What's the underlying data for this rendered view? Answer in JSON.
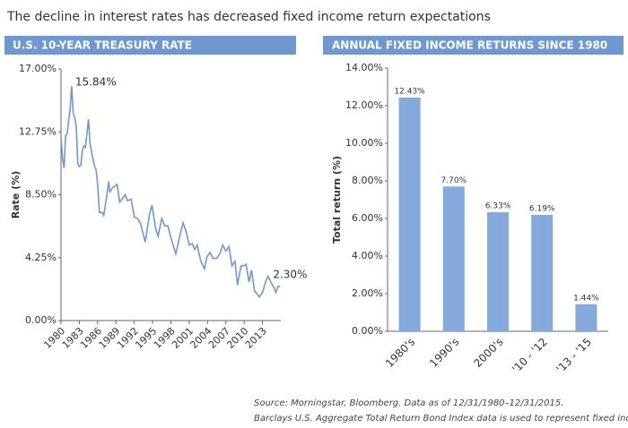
{
  "title": "The decline in interest rates has decreased fixed income return expectations",
  "source": [
    "Source: Morningstar, Bloomberg. Data as of 12/31/1980–12/31/2015.",
    "Barclays U.S. Aggregate Total Return Bond Index data is used to represent fixed income returns"
  ],
  "chart_data": [
    {
      "type": "line",
      "title": "U.S. 10-YEAR TREASURY RATE",
      "y_label": "Rate (%)",
      "color": "#6f98d0",
      "annotations": [
        "15.84%",
        "2.30%"
      ],
      "x": [
        1980.0,
        1980.25,
        1980.5,
        1980.75,
        1981.0,
        1981.25,
        1981.5,
        1981.75,
        1982.0,
        1982.25,
        1982.5,
        1982.75,
        1983.0,
        1983.25,
        1983.5,
        1983.75,
        1984.0,
        1984.5,
        1984.75,
        1985.0,
        1985.5,
        1985.75,
        1986.0,
        1986.3,
        1986.75,
        1987.0,
        1987.5,
        1987.8,
        1988.0,
        1988.5,
        1988.9,
        1989.2,
        1989.6,
        1990.0,
        1990.5,
        1990.9,
        1991.5,
        1992.0,
        1992.5,
        1993.0,
        1993.8,
        1994.5,
        1994.9,
        1995.5,
        1995.9,
        1996.5,
        1997.0,
        1997.5,
        1998.0,
        1998.8,
        1999.5,
        2000.0,
        2000.5,
        2001.0,
        2001.5,
        2001.9,
        2002.3,
        2002.9,
        2003.5,
        2003.9,
        2004.4,
        2004.9,
        2005.5,
        2006.0,
        2006.5,
        2007.0,
        2007.5,
        2008.0,
        2008.5,
        2008.9,
        2009.5,
        2010.0,
        2010.3,
        2010.8,
        2011.2,
        2011.7,
        2012.5,
        2013.0,
        2013.5,
        2013.9,
        2014.5,
        2014.9,
        2015.2,
        2015.5,
        2015.9
      ],
      "values": [
        12.4,
        11.0,
        10.3,
        12.5,
        12.6,
        13.5,
        14.3,
        15.84,
        14.0,
        13.7,
        13.1,
        10.6,
        10.4,
        10.5,
        11.5,
        11.8,
        11.7,
        13.6,
        12.0,
        11.4,
        10.4,
        10.2,
        9.2,
        7.3,
        7.3,
        7.1,
        8.4,
        9.4,
        8.7,
        9.0,
        9.1,
        9.2,
        8.0,
        8.2,
        8.5,
        8.1,
        8.2,
        7.0,
        6.9,
        6.6,
        5.3,
        7.2,
        7.8,
        6.2,
        5.7,
        6.9,
        6.4,
        6.4,
        5.6,
        4.5,
        5.8,
        6.6,
        6.0,
        5.1,
        5.2,
        4.8,
        5.1,
        4.0,
        3.5,
        4.3,
        4.6,
        4.2,
        4.2,
        4.5,
        5.1,
        4.7,
        5.0,
        3.7,
        4.0,
        2.4,
        3.7,
        3.7,
        3.8,
        2.6,
        3.4,
        2.0,
        1.6,
        1.9,
        2.6,
        3.0,
        2.5,
        2.2,
        1.9,
        2.3,
        2.3
      ],
      "xlim": [
        1980,
        2016
      ],
      "xticks": [
        1980,
        1983,
        1986,
        1989,
        1992,
        1995,
        1998,
        2001,
        2004,
        2007,
        2010,
        2013
      ],
      "ylim": [
        0,
        17
      ],
      "yticks": [
        {
          "value": 0,
          "label": "0.00%"
        },
        {
          "value": 4.25,
          "label": "4.25%"
        },
        {
          "value": 8.5,
          "label": "8.50%"
        },
        {
          "value": 12.75,
          "label": "12.75%"
        },
        {
          "value": 17,
          "label": "17.00%"
        }
      ]
    },
    {
      "type": "bar",
      "title": "ANNUAL FIXED INCOME RETURNS SINCE 1980",
      "y_label": "Total return (%)",
      "color": "#85a9dc",
      "categories": [
        "1980's",
        "1990's",
        "2000's",
        "'10 - '12",
        "'13 - '15"
      ],
      "values": [
        12.43,
        7.7,
        6.33,
        6.19,
        1.44
      ],
      "value_labels": [
        "12.43%",
        "7.70%",
        "6.33%",
        "6.19%",
        "1.44%"
      ],
      "ylim": [
        0,
        14
      ],
      "yticks": [
        {
          "value": 0,
          "label": "0.00%"
        },
        {
          "value": 2,
          "label": "2.00%"
        },
        {
          "value": 4,
          "label": "4.00%"
        },
        {
          "value": 6,
          "label": "6.00%"
        },
        {
          "value": 8,
          "label": "8.00%"
        },
        {
          "value": 10,
          "label": "10.00%"
        },
        {
          "value": 12,
          "label": "12.00%"
        },
        {
          "value": 14,
          "label": "14.00%"
        }
      ]
    }
  ]
}
